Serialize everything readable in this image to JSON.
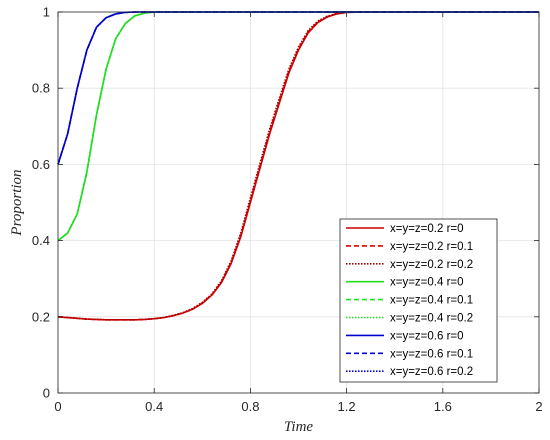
{
  "chart_data": {
    "type": "line",
    "title": "",
    "xlabel": "Time",
    "ylabel": "Proportion",
    "xlim": [
      0,
      2
    ],
    "ylim": [
      0,
      1
    ],
    "xticks": [
      0,
      0.4,
      0.8,
      1.2,
      1.6,
      2
    ],
    "xtick_labels": [
      "0",
      "0.4",
      "0.8",
      "1.2",
      "1.6",
      "2"
    ],
    "yticks": [
      0,
      0.2,
      0.4,
      0.6,
      0.8,
      1
    ],
    "ytick_labels": [
      "0",
      "0.2",
      "0.4",
      "0.6",
      "0.8",
      "1"
    ],
    "grid": true,
    "legend_position": "bottom-right",
    "x": [
      0,
      0.04,
      0.08,
      0.12,
      0.16,
      0.2,
      0.24,
      0.28,
      0.32,
      0.36,
      0.4,
      0.44,
      0.48,
      0.52,
      0.56,
      0.6,
      0.64,
      0.68,
      0.72,
      0.76,
      0.8,
      0.84,
      0.88,
      0.92,
      0.96,
      1.0,
      1.04,
      1.08,
      1.12,
      1.16,
      1.2,
      1.28,
      1.4,
      1.6,
      1.8,
      2.0
    ],
    "series": [
      {
        "name": "x=y=z=0.2 r=0",
        "color": "#cc0000",
        "dash": "solid",
        "values": [
          0.2,
          0.198,
          0.196,
          0.194,
          0.193,
          0.192,
          0.192,
          0.192,
          0.192,
          0.193,
          0.195,
          0.198,
          0.203,
          0.21,
          0.22,
          0.235,
          0.257,
          0.29,
          0.34,
          0.41,
          0.5,
          0.59,
          0.68,
          0.76,
          0.84,
          0.9,
          0.945,
          0.972,
          0.987,
          0.995,
          0.999,
          1,
          1,
          1,
          1,
          1
        ]
      },
      {
        "name": "x=y=z=0.2 r=0.1",
        "color": "#e00000",
        "dash": "dashed",
        "values": [
          0.2,
          0.198,
          0.196,
          0.194,
          0.193,
          0.192,
          0.192,
          0.192,
          0.192,
          0.193,
          0.195,
          0.198,
          0.203,
          0.21,
          0.22,
          0.236,
          0.258,
          0.292,
          0.343,
          0.414,
          0.505,
          0.596,
          0.686,
          0.766,
          0.845,
          0.904,
          0.948,
          0.974,
          0.988,
          0.996,
          0.999,
          1,
          1,
          1,
          1,
          1
        ]
      },
      {
        "name": "x=y=z=0.2 r=0.2",
        "color": "#a00000",
        "dash": "dotted",
        "values": [
          0.2,
          0.198,
          0.196,
          0.194,
          0.193,
          0.192,
          0.192,
          0.192,
          0.192,
          0.193,
          0.195,
          0.198,
          0.204,
          0.211,
          0.222,
          0.238,
          0.26,
          0.295,
          0.347,
          0.42,
          0.512,
          0.603,
          0.693,
          0.773,
          0.85,
          0.908,
          0.951,
          0.976,
          0.989,
          0.996,
          0.999,
          1,
          1,
          1,
          1,
          1
        ]
      },
      {
        "name": "x=y=z=0.4 r=0",
        "color": "#22dd22",
        "dash": "solid",
        "values": [
          0.4,
          0.42,
          0.47,
          0.58,
          0.73,
          0.85,
          0.93,
          0.97,
          0.99,
          0.997,
          1,
          1,
          1,
          1,
          1,
          1,
          1,
          1,
          1,
          1,
          1,
          1,
          1,
          1,
          1,
          1,
          1,
          1,
          1,
          1,
          1,
          1,
          1,
          1,
          1,
          1
        ]
      },
      {
        "name": "x=y=z=0.4 r=0.1",
        "color": "#22dd22",
        "dash": "dashed",
        "values": [
          0.4,
          0.42,
          0.47,
          0.58,
          0.73,
          0.85,
          0.93,
          0.97,
          0.99,
          0.997,
          1,
          1,
          1,
          1,
          1,
          1,
          1,
          1,
          1,
          1,
          1,
          1,
          1,
          1,
          1,
          1,
          1,
          1,
          1,
          1,
          1,
          1,
          1,
          1,
          1,
          1
        ]
      },
      {
        "name": "x=y=z=0.4 r=0.2",
        "color": "#22dd22",
        "dash": "dotted",
        "values": [
          0.4,
          0.42,
          0.47,
          0.58,
          0.73,
          0.85,
          0.93,
          0.97,
          0.99,
          0.997,
          1,
          1,
          1,
          1,
          1,
          1,
          1,
          1,
          1,
          1,
          1,
          1,
          1,
          1,
          1,
          1,
          1,
          1,
          1,
          1,
          1,
          1,
          1,
          1,
          1,
          1
        ]
      },
      {
        "name": "x=y=z=0.6 r=0",
        "color": "#0000cc",
        "dash": "solid",
        "values": [
          0.6,
          0.68,
          0.8,
          0.9,
          0.96,
          0.985,
          0.995,
          0.999,
          1,
          1,
          1,
          1,
          1,
          1,
          1,
          1,
          1,
          1,
          1,
          1,
          1,
          1,
          1,
          1,
          1,
          1,
          1,
          1,
          1,
          1,
          1,
          1,
          1,
          1,
          1,
          1
        ]
      },
      {
        "name": "x=y=z=0.6 r=0.1",
        "color": "#0000cc",
        "dash": "dashed",
        "values": [
          0.6,
          0.68,
          0.8,
          0.9,
          0.96,
          0.985,
          0.995,
          0.999,
          1,
          1,
          1,
          1,
          1,
          1,
          1,
          1,
          1,
          1,
          1,
          1,
          1,
          1,
          1,
          1,
          1,
          1,
          1,
          1,
          1,
          1,
          1,
          1,
          1,
          1,
          1,
          1
        ]
      },
      {
        "name": "x=y=z=0.6 r=0.2",
        "color": "#0000cc",
        "dash": "dotted",
        "values": [
          0.6,
          0.68,
          0.8,
          0.9,
          0.96,
          0.985,
          0.995,
          0.999,
          1,
          1,
          1,
          1,
          1,
          1,
          1,
          1,
          1,
          1,
          1,
          1,
          1,
          1,
          1,
          1,
          1,
          1,
          1,
          1,
          1,
          1,
          1,
          1,
          1,
          1,
          1,
          1
        ]
      }
    ]
  }
}
